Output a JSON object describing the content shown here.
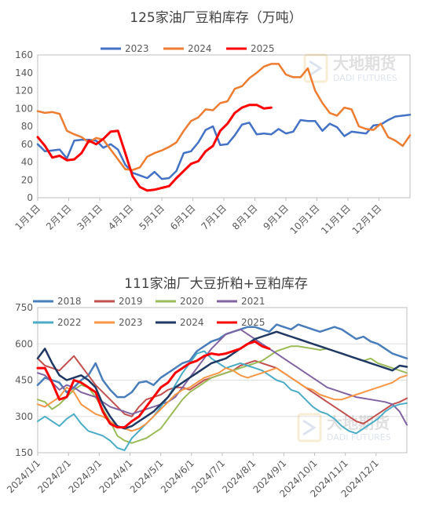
{
  "chart_data": [
    {
      "type": "line",
      "title": "125家油厂豆粕库存（万吨）",
      "ylim": [
        0,
        160
      ],
      "yticks": [
        0,
        20,
        40,
        60,
        80,
        100,
        120,
        140,
        160
      ],
      "x_ticks": [
        "1月1日",
        "2月1日",
        "3月1日",
        "4月1日",
        "5月1日",
        "6月1日",
        "7月1日",
        "8月1日",
        "9月1日",
        "10月1日",
        "11月1日",
        "12月1日"
      ],
      "x_count": 52,
      "legend_position": "top",
      "series": [
        {
          "name": "2023",
          "color": "#4472C4",
          "width": 2.5,
          "values": [
            60,
            52,
            53,
            54,
            44,
            64,
            65,
            65,
            64,
            56,
            60,
            54,
            37,
            28,
            25,
            22,
            29,
            21,
            22,
            30,
            50,
            52,
            62,
            76,
            80,
            59,
            60,
            70,
            82,
            84,
            71,
            72,
            71,
            77,
            72,
            74,
            87,
            86,
            86,
            75,
            83,
            79,
            69,
            74,
            73,
            72,
            81,
            82,
            87,
            91,
            92,
            93
          ]
        },
        {
          "name": "2024",
          "color": "#ED7D31",
          "width": 2.5,
          "values": [
            97,
            95,
            96,
            94,
            75,
            71,
            68,
            62,
            67,
            65,
            54,
            43,
            32,
            31,
            34,
            46,
            50,
            53,
            57,
            62,
            75,
            86,
            90,
            99,
            98,
            106,
            108,
            122,
            125,
            134,
            140,
            147,
            150,
            150,
            138,
            135,
            135,
            145,
            120,
            106,
            95,
            92,
            101,
            99,
            80,
            77,
            76,
            83,
            68,
            64,
            58,
            70
          ]
        },
        {
          "name": "2025",
          "color": "#FF0000",
          "width": 3,
          "values": [
            68,
            58,
            45,
            47,
            42,
            43,
            50,
            64,
            60,
            66,
            74,
            75,
            50,
            24,
            12,
            8,
            9,
            11,
            13,
            22,
            30,
            38,
            41,
            52,
            58,
            75,
            83,
            95,
            101,
            104,
            104,
            100,
            101
          ]
        }
      ],
      "watermark": {
        "cn": "大地期货",
        "en": "DADI FUTURES"
      }
    },
    {
      "type": "line",
      "title": "111家油厂大豆折粕+豆粕库存",
      "ylim": [
        150,
        750
      ],
      "yticks": [
        150,
        300,
        450,
        600,
        750
      ],
      "x_ticks": [
        "2024/1/1",
        "2024/2/1",
        "2024/3/1",
        "2024/4/1",
        "2024/5/1",
        "2024/6/1",
        "2024/7/1",
        "2024/8/1",
        "2024/9/1",
        "2024/10/1",
        "2024/11/1",
        "2024/12/1"
      ],
      "x_count": 52,
      "legend_position": "top",
      "series": [
        {
          "name": "2018",
          "color": "#4A7EBB",
          "width": 2.5,
          "values": [
            430,
            460,
            450,
            440,
            400,
            420,
            450,
            470,
            520,
            450,
            410,
            380,
            380,
            400,
            440,
            445,
            430,
            460,
            480,
            500,
            520,
            530,
            570,
            590,
            610,
            620,
            640,
            650,
            660,
            670,
            670,
            660,
            650,
            680,
            670,
            660,
            680,
            670,
            660,
            650,
            660,
            670,
            660,
            640,
            620,
            630,
            610,
            600,
            580,
            560,
            550,
            540
          ]
        },
        {
          "name": "2019",
          "color": "#C0504D",
          "width": 2,
          "values": [
            540,
            510,
            500,
            490,
            520,
            550,
            510,
            470,
            430,
            400,
            370,
            340,
            310,
            300,
            340,
            370,
            380,
            390,
            410,
            420,
            420,
            410,
            430,
            450,
            460,
            470,
            480,
            490,
            510,
            520,
            530,
            520,
            510,
            500,
            480,
            460,
            440,
            420,
            400,
            380,
            360,
            340,
            320,
            300,
            280,
            270,
            290,
            310,
            330,
            350,
            360,
            375
          ]
        },
        {
          "name": "2020",
          "color": "#9BBB59",
          "width": 2,
          "values": [
            370,
            360,
            330,
            350,
            380,
            410,
            430,
            420,
            380,
            330,
            280,
            220,
            200,
            190,
            200,
            210,
            230,
            250,
            290,
            330,
            370,
            400,
            420,
            440,
            460,
            470,
            480,
            490,
            500,
            510,
            520,
            530,
            550,
            570,
            580,
            590,
            590,
            585,
            580,
            575,
            580,
            570,
            560,
            550,
            540,
            530,
            540,
            520,
            510,
            500,
            490,
            480
          ]
        },
        {
          "name": "2021",
          "color": "#8064A2",
          "width": 2,
          "values": [
            480,
            470,
            440,
            410,
            430,
            420,
            400,
            390,
            380,
            360,
            340,
            330,
            320,
            310,
            320,
            330,
            340,
            350,
            360,
            380,
            420,
            460,
            500,
            540,
            580,
            610,
            640,
            650,
            660,
            640,
            620,
            600,
            580,
            560,
            540,
            520,
            500,
            480,
            460,
            440,
            420,
            410,
            400,
            390,
            380,
            375,
            370,
            365,
            360,
            350,
            320,
            265
          ]
        },
        {
          "name": "2022",
          "color": "#4BACC6",
          "width": 2,
          "values": [
            280,
            300,
            280,
            260,
            290,
            310,
            270,
            240,
            230,
            220,
            200,
            170,
            160,
            210,
            240,
            270,
            300,
            340,
            380,
            430,
            480,
            520,
            560,
            570,
            540,
            520,
            500,
            510,
            520,
            510,
            500,
            490,
            470,
            450,
            440,
            410,
            400,
            370,
            340,
            320,
            310,
            290,
            260,
            240,
            230,
            250,
            270,
            290,
            320,
            340,
            350,
            355
          ]
        },
        {
          "name": "2023",
          "color": "#F79646",
          "width": 2,
          "values": [
            350,
            340,
            360,
            380,
            420,
            400,
            350,
            330,
            310,
            300,
            280,
            260,
            250,
            240,
            250,
            270,
            300,
            330,
            360,
            390,
            410,
            420,
            440,
            460,
            470,
            480,
            500,
            490,
            470,
            460,
            470,
            480,
            490,
            500,
            480,
            460,
            440,
            420,
            410,
            390,
            380,
            370,
            370,
            380,
            390,
            400,
            410,
            420,
            430,
            440,
            460,
            470
          ]
        },
        {
          "name": "2024",
          "color": "#1F3864",
          "width": 2.5,
          "values": [
            540,
            580,
            520,
            470,
            450,
            460,
            470,
            450,
            420,
            350,
            300,
            260,
            250,
            260,
            280,
            300,
            320,
            350,
            380,
            420,
            440,
            460,
            480,
            500,
            520,
            530,
            540,
            560,
            580,
            600,
            620,
            630,
            640,
            650,
            640,
            630,
            620,
            610,
            600,
            590,
            580,
            570,
            560,
            550,
            540,
            530,
            520,
            510,
            500,
            490,
            510,
            505
          ]
        },
        {
          "name": "2025",
          "color": "#FF0000",
          "width": 3,
          "values": [
            500,
            500,
            440,
            370,
            380,
            450,
            440,
            420,
            400,
            320,
            270,
            255,
            255,
            280,
            300,
            340,
            380,
            420,
            440,
            480,
            500,
            520,
            530,
            550,
            560,
            555,
            560,
            570,
            580,
            600,
            610,
            590,
            580
          ]
        }
      ],
      "watermark": {
        "cn": "大地期货",
        "en": "DADI FUTURES"
      }
    }
  ]
}
